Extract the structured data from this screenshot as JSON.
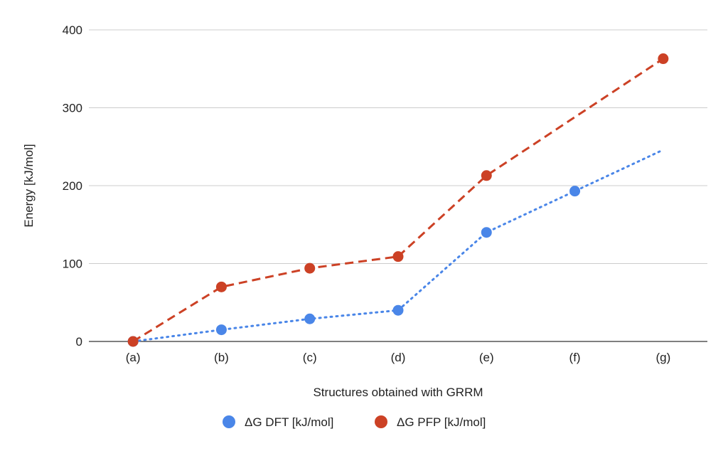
{
  "chart_data": {
    "type": "line",
    "categories": [
      "(a)",
      "(b)",
      "(c)",
      "(d)",
      "(e)",
      "(f)",
      "(g)"
    ],
    "xlabel": "Structures obtained with GRRM",
    "ylabel": "Energy [kJ/mol]",
    "ylim": [
      0,
      400
    ],
    "yticks": [
      0,
      100,
      200,
      300,
      400
    ],
    "grid": true,
    "legend_position": "bottom",
    "series": [
      {
        "name": "ΔG DFT [kJ/mol]",
        "color": "#4a86e8",
        "line_style": "dotted",
        "values": [
          0,
          15,
          29,
          40,
          140,
          193,
          246
        ],
        "markers": [
          true,
          true,
          true,
          true,
          true,
          true,
          false
        ]
      },
      {
        "name": "ΔG PFP [kJ/mol]",
        "color": "#cc4125",
        "line_style": "dashed",
        "values": [
          0,
          70,
          94,
          109,
          213,
          288,
          363
        ],
        "markers": [
          true,
          true,
          true,
          true,
          true,
          false,
          true
        ]
      }
    ]
  }
}
